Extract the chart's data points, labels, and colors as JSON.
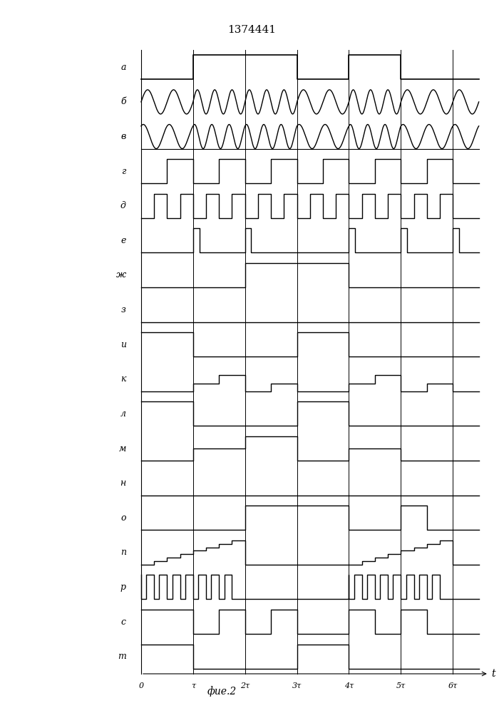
{
  "title": "1374441",
  "fig_label": "фие.2",
  "channels": [
    "а",
    "б",
    "в",
    "г",
    "д",
    "е",
    "ж",
    "з",
    "и",
    "к",
    "л",
    "м",
    "н",
    "о",
    "п",
    "р",
    "с",
    "т"
  ],
  "n_channels": 18,
  "tau": 1.0,
  "total_time": 6.5,
  "x_ticks": [
    0,
    1,
    2,
    3,
    4,
    5,
    6
  ],
  "x_tick_labels": [
    "0",
    "τ",
    "2τ",
    "3τ",
    "4τ",
    "5τ",
    "6τ"
  ],
  "bg_color": "#ffffff",
  "line_color": "#000000"
}
